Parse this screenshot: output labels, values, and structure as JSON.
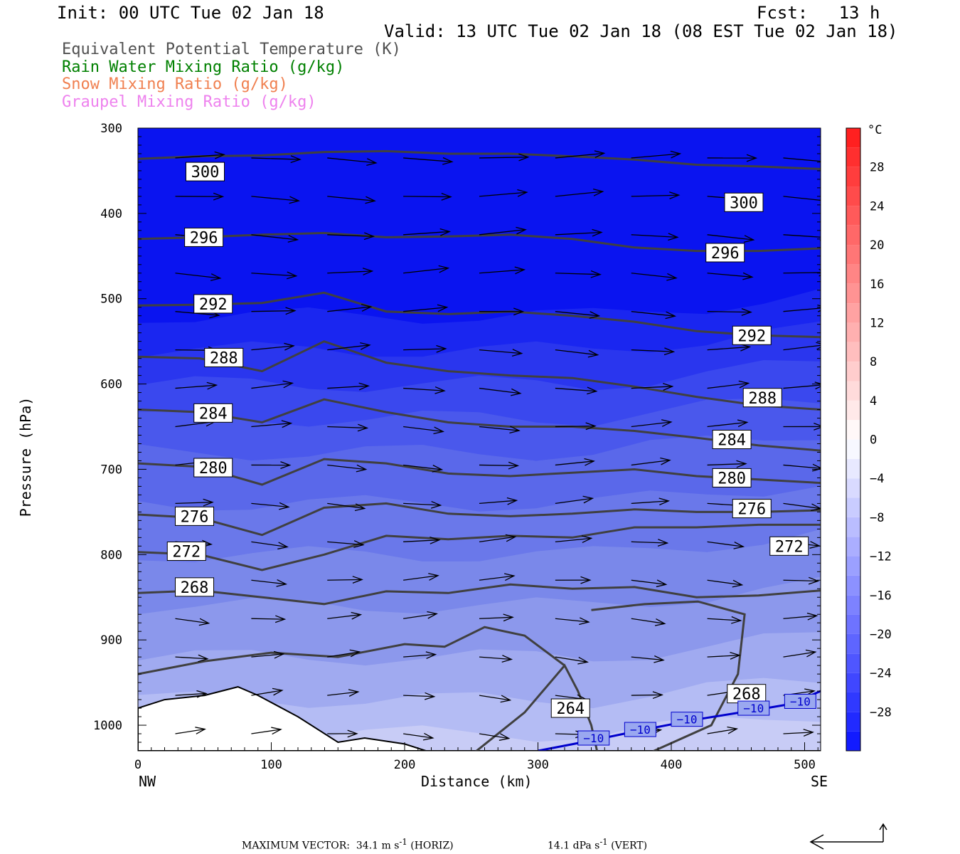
{
  "header": {
    "init": "Init: 00 UTC Tue 02 Jan 18",
    "fcst": "Fcst:   13 h",
    "valid": "Valid: 13 UTC Tue 02 Jan 18 (08 EST Tue 02 Jan 18)"
  },
  "legend": [
    {
      "label": "Equivalent Potential Temperature (K)",
      "color": "#505050"
    },
    {
      "label": "Rain Water Mixing Ratio (g/kg)",
      "color": "#008000"
    },
    {
      "label": "Snow Mixing Ratio (g/kg)",
      "color": "#f08050"
    },
    {
      "label": "Graupel Mixing Ratio (g/kg)",
      "color": "#ee82ee"
    }
  ],
  "chart_data": {
    "type": "cross-section",
    "xlabel": "Distance (km)",
    "ylabel": "Pressure (hPa)",
    "x_ticks": [
      0,
      100,
      200,
      300,
      400,
      500
    ],
    "y_ticks": [
      300,
      400,
      500,
      600,
      700,
      800,
      900,
      1000
    ],
    "xlim": [
      0,
      512
    ],
    "ylim": [
      1030,
      300
    ],
    "x_end_labels": {
      "left": "NW",
      "right": "SE"
    },
    "colorbar": {
      "unit": "°C",
      "tick_labels": [
        "28",
        "24",
        "20",
        "16",
        "12",
        "8",
        "4",
        "0",
        "−4",
        "−8",
        "−12",
        "−16",
        "−20",
        "−24",
        "−28"
      ],
      "tick_values": [
        28,
        24,
        20,
        16,
        12,
        8,
        4,
        0,
        -4,
        -8,
        -12,
        -16,
        -20,
        -24,
        -28
      ],
      "range": [
        -32,
        32
      ]
    },
    "theta_e_contours": [
      {
        "label": "300",
        "y": [
          336,
          333,
          332,
          328,
          327,
          330,
          330,
          333,
          337,
          343,
          345,
          348
        ],
        "label_pos": [
          [
            36,
            351
          ],
          [
            440,
            387
          ]
        ]
      },
      {
        "label": "296",
        "y": [
          430,
          428,
          425,
          423,
          428,
          427,
          425,
          430,
          440,
          444,
          444,
          441
        ],
        "label_pos": [
          [
            35,
            428
          ],
          [
            426,
            446
          ]
        ]
      },
      {
        "label": "292",
        "y": [
          508,
          507,
          505,
          493,
          515,
          518,
          515,
          520,
          527,
          538,
          543,
          545
        ],
        "label_pos": [
          [
            42,
            506
          ],
          [
            446,
            543
          ]
        ]
      },
      {
        "label": "288",
        "y": [
          568,
          570,
          585,
          550,
          575,
          585,
          590,
          593,
          603,
          615,
          625,
          630
        ],
        "label_pos": [
          [
            50,
            569
          ],
          [
            454,
            616
          ]
        ]
      },
      {
        "label": "284",
        "y": [
          630,
          633,
          645,
          618,
          633,
          645,
          650,
          650,
          655,
          663,
          672,
          678
        ],
        "label_pos": [
          [
            42,
            634
          ],
          [
            431,
            665
          ]
        ]
      },
      {
        "label": "280",
        "y": [
          693,
          697,
          718,
          688,
          693,
          705,
          708,
          704,
          700,
          708,
          712,
          716
        ],
        "label_pos": [
          [
            42,
            698
          ],
          [
            431,
            710
          ]
        ]
      },
      {
        "label": "276",
        "y": [
          753,
          757,
          777,
          745,
          740,
          752,
          755,
          752,
          747,
          750,
          750,
          748
        ],
        "label_pos": [
          [
            28,
            755
          ],
          [
            446,
            746
          ]
        ]
      },
      {
        "label": "272",
        "y": [
          797,
          800,
          818,
          800,
          778,
          782,
          778,
          780,
          768,
          768,
          765,
          765
        ],
        "label_pos": [
          [
            22,
            796
          ],
          [
            474,
            790
          ]
        ]
      },
      {
        "label": "268",
        "y": [
          845,
          842,
          850,
          858,
          843,
          845,
          835,
          840,
          838,
          850,
          848,
          842
        ],
        "label_pos": [
          [
            28,
            838
          ],
          [
            442,
            963
          ]
        ]
      }
    ],
    "isotherm_minus10": {
      "label": "−10",
      "x": [
        300,
        340,
        380,
        420,
        460,
        490,
        512
      ],
      "p": [
        1030,
        1018,
        1005,
        993,
        983,
        975,
        960
      ]
    },
    "max_vector_text": "MAXIMUM VECTOR:  34.1 m s",
    "horiz_suffix": " (HORIZ)",
    "vert_text": "14.1 dPa s",
    "vert_suffix": " (VERT)",
    "superscript": "-1"
  }
}
